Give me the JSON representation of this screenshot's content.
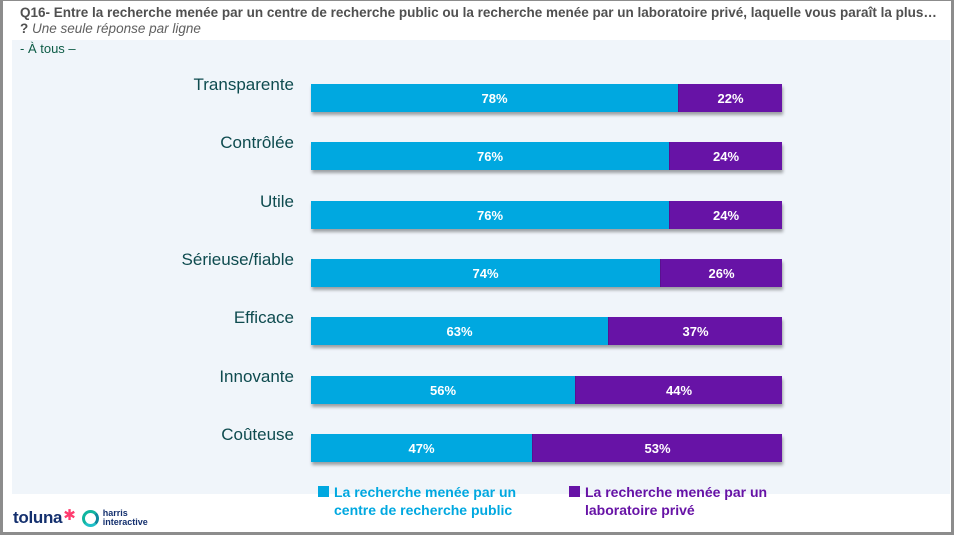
{
  "header": {
    "question": "Q16- Entre la recherche menée par un centre de recherche public ou la recherche menée par un laboratoire privé, laquelle vous paraît la plus… ?",
    "instruction": "Une seule réponse par ligne",
    "base": "- À tous –"
  },
  "colors": {
    "public": "#00a8e0",
    "private": "#6713a6",
    "category_text": "#0e4b4f",
    "panel": "#f0f5fa"
  },
  "chart_data": {
    "type": "bar",
    "orientation": "horizontal",
    "stacked": true,
    "percent_stacked": true,
    "title": "Q16- Entre la recherche menée par un centre de recherche public ou la recherche menée par un laboratoire privé, laquelle vous paraît la plus… ?",
    "xlabel": "",
    "ylabel": "",
    "xlim": [
      0,
      100
    ],
    "grid": false,
    "legend_position": "bottom",
    "categories": [
      "Transparente",
      "Contrôlée",
      "Utile",
      "Sérieuse/fiable",
      "Efficace",
      "Innovante",
      "Coûteuse"
    ],
    "series": [
      {
        "name": "La recherche menée par un centre de recherche public",
        "color": "#00a8e0",
        "values": [
          78,
          76,
          76,
          74,
          63,
          56,
          47
        ],
        "labels": [
          "78%",
          "76%",
          "76%",
          "74%",
          "63%",
          "56%",
          "47%"
        ]
      },
      {
        "name": "La recherche menée par un laboratoire privé",
        "color": "#6713a6",
        "values": [
          22,
          24,
          24,
          26,
          37,
          44,
          53
        ],
        "labels": [
          "22%",
          "24%",
          "24%",
          "26%",
          "37%",
          "44%",
          "53%"
        ]
      }
    ]
  },
  "legend": {
    "public_line1": "La recherche menée par un",
    "public_line2": "centre de recherche public",
    "private_line1": "La recherche menée par un",
    "private_line2": "laboratoire privé"
  },
  "logos": {
    "toluna": "toluna",
    "harris_line1": "harris",
    "harris_line2": "interactive"
  }
}
